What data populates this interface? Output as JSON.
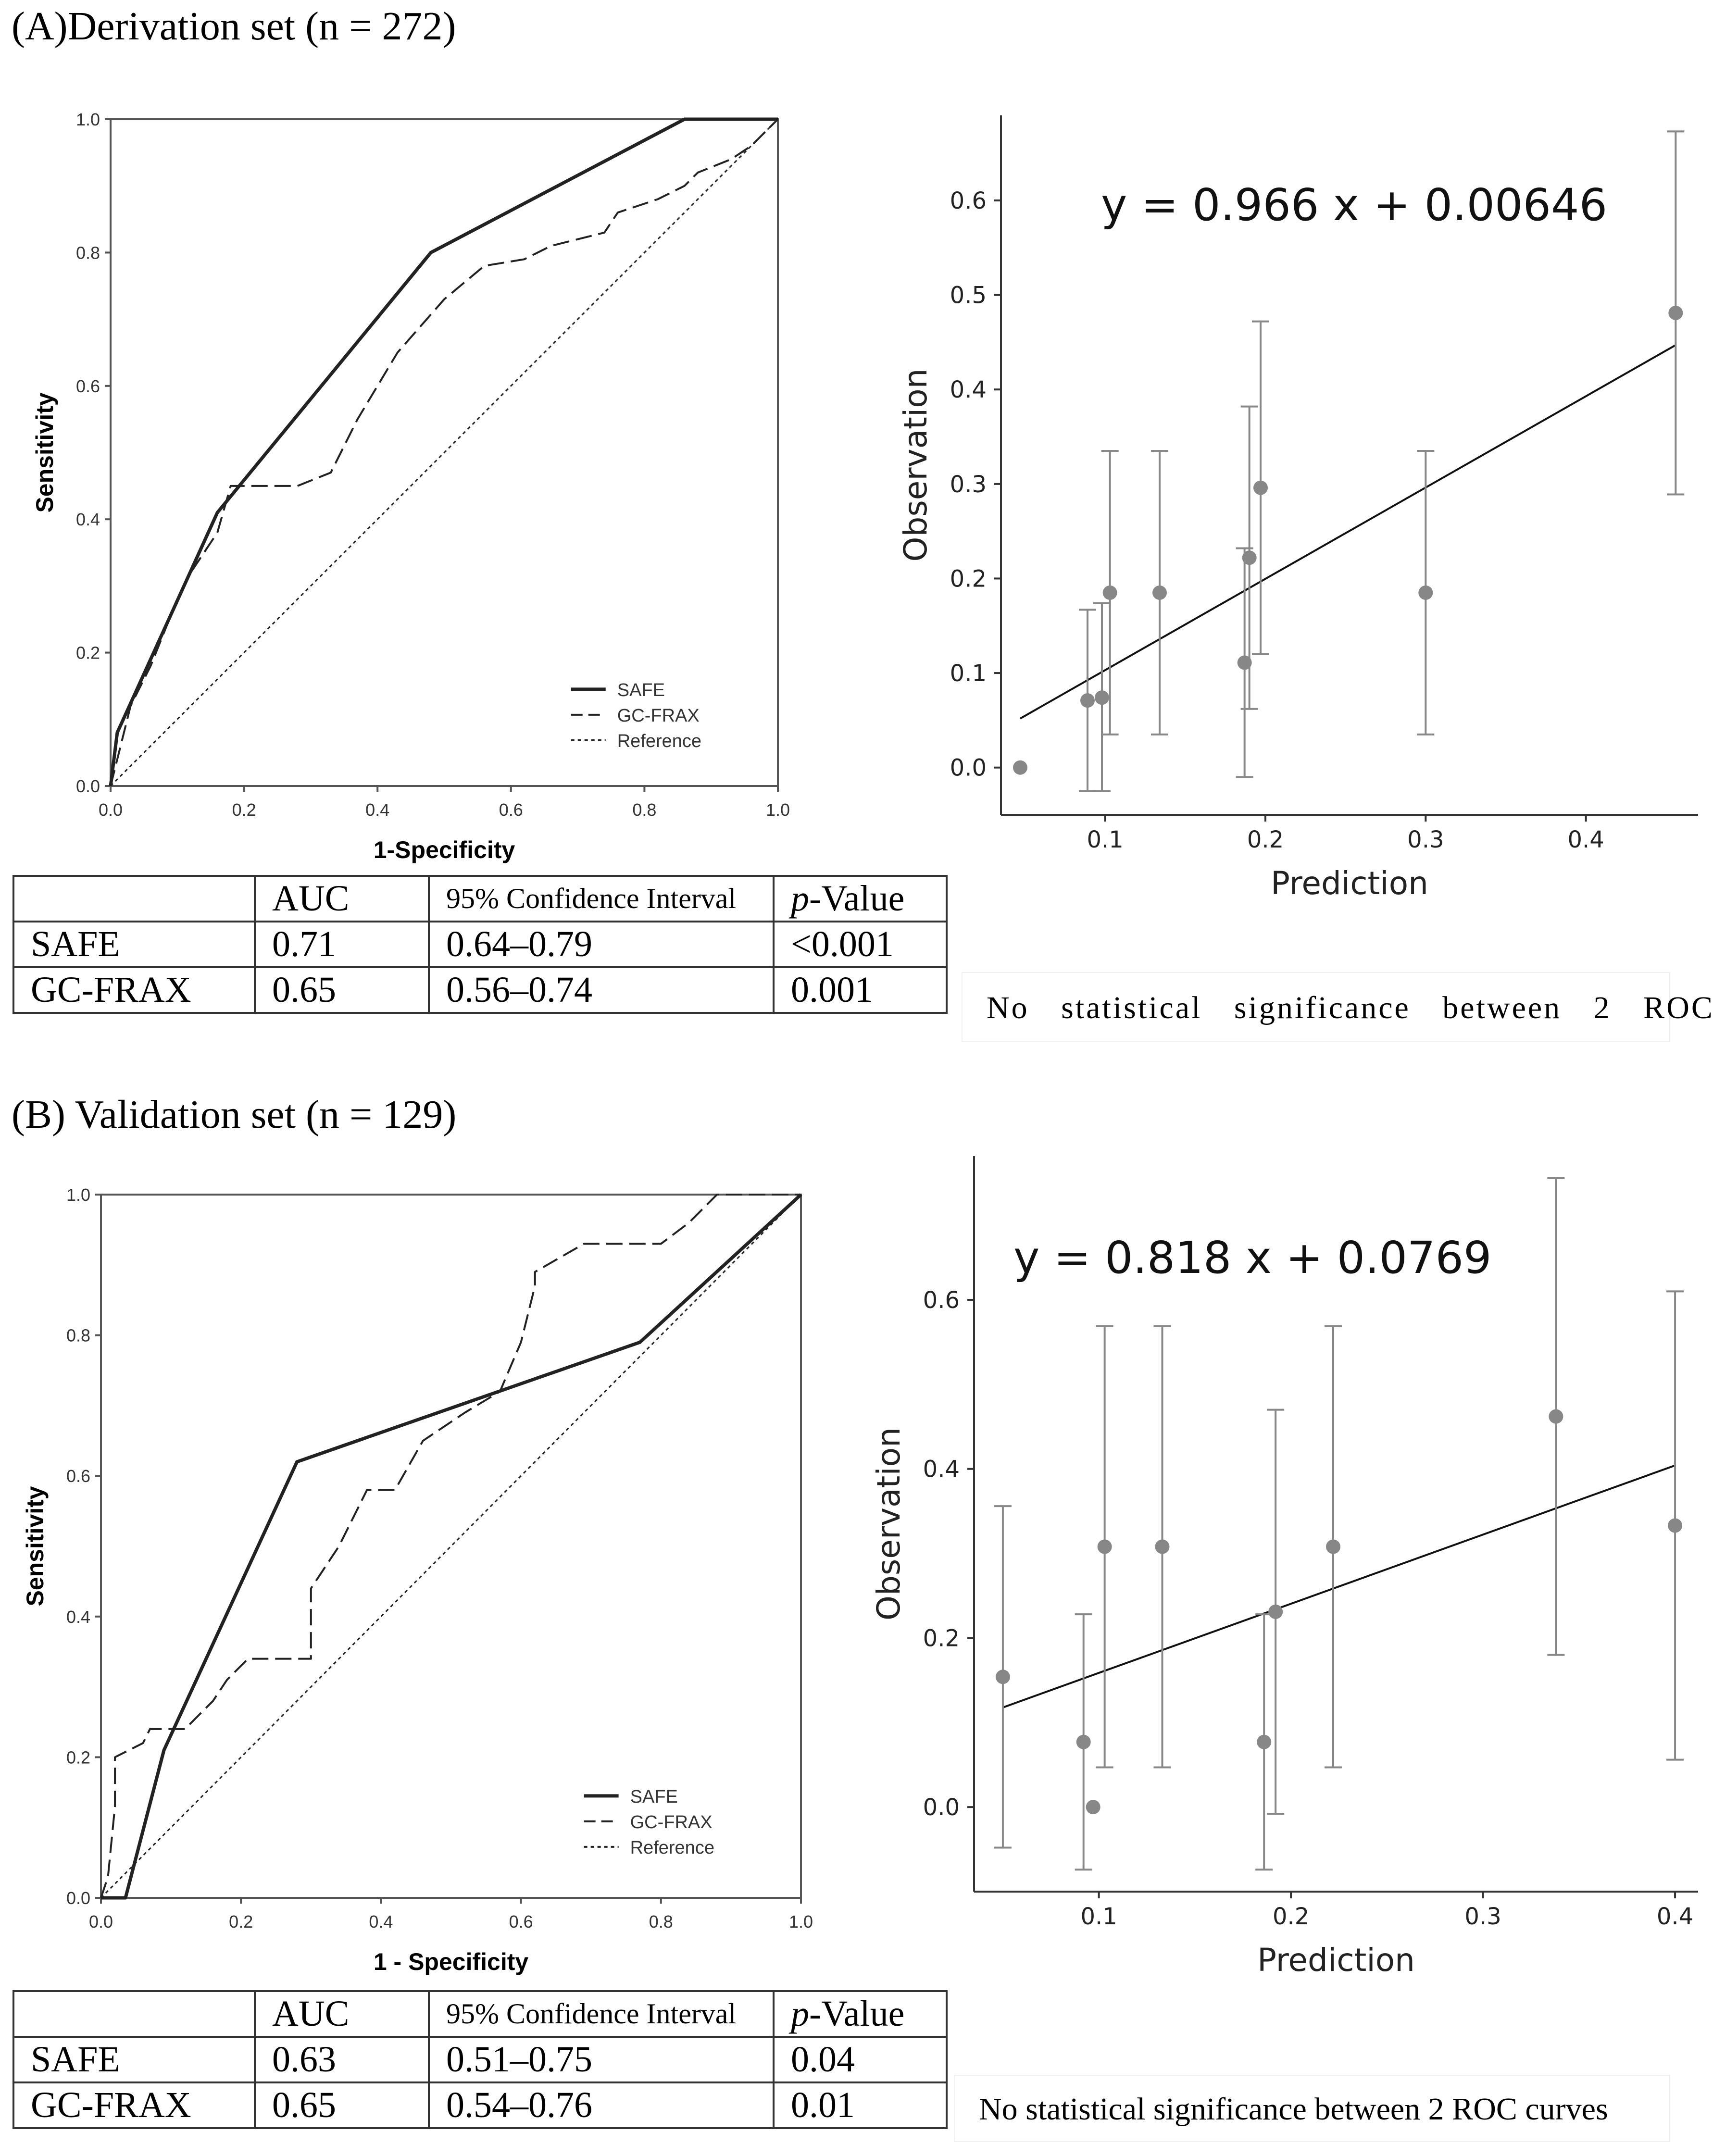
{
  "panels": [
    {
      "title": "(A)Derivation set (n = 272)",
      "roc": {
        "type": "line",
        "xlabel": "1-Specificity",
        "ylabel": "Sensitivity",
        "xlim": [
          0,
          1
        ],
        "ylim": [
          0,
          1
        ],
        "xticks": [
          "0.0",
          "0.2",
          "0.4",
          "0.6",
          "0.8",
          "1.0"
        ],
        "yticks": [
          "0.0",
          "0.2",
          "0.4",
          "0.6",
          "0.8",
          "1.0"
        ],
        "legend_position": "bottom-right",
        "series": [
          {
            "name": "SAFE",
            "style": "solid",
            "x": [
              0,
              0.01,
              0.16,
              0.48,
              0.86,
              1.0
            ],
            "y": [
              0,
              0.08,
              0.41,
              0.8,
              1.0,
              1.0
            ]
          },
          {
            "name": "GC-FRAX",
            "style": "dashed",
            "x": [
              0,
              0.01,
              0.03,
              0.06,
              0.1,
              0.12,
              0.16,
              0.18,
              0.2,
              0.28,
              0.33,
              0.37,
              0.43,
              0.5,
              0.56,
              0.62,
              0.66,
              0.74,
              0.76,
              0.82,
              0.86,
              0.88,
              0.93,
              0.96,
              0.98,
              1.0
            ],
            "y": [
              0,
              0.04,
              0.12,
              0.18,
              0.28,
              0.32,
              0.38,
              0.45,
              0.45,
              0.45,
              0.47,
              0.55,
              0.65,
              0.73,
              0.78,
              0.79,
              0.81,
              0.83,
              0.86,
              0.88,
              0.9,
              0.92,
              0.94,
              0.96,
              0.98,
              1.0
            ]
          },
          {
            "name": "Reference",
            "style": "dotted",
            "x": [
              0,
              1
            ],
            "y": [
              0,
              1
            ]
          }
        ]
      },
      "calibration": {
        "type": "scatter",
        "equation": "y = 0.966 x + 0.00646",
        "xlabel": "Prediction",
        "ylabel": "Observation",
        "xlim": [
          0.035,
          0.47
        ],
        "ylim": [
          -0.05,
          0.69
        ],
        "xticks": [
          0.1,
          0.2,
          0.3,
          0.4
        ],
        "yticks": [
          0.0,
          0.1,
          0.2,
          0.3,
          0.4,
          0.5,
          0.6
        ],
        "points": [
          {
            "x": 0.047,
            "y": 0.0,
            "lo": null,
            "hi": null
          },
          {
            "x": 0.089,
            "y": 0.071,
            "lo": -0.025,
            "hi": 0.167
          },
          {
            "x": 0.098,
            "y": 0.074,
            "lo": -0.025,
            "hi": 0.174
          },
          {
            "x": 0.103,
            "y": 0.185,
            "lo": 0.035,
            "hi": 0.335
          },
          {
            "x": 0.134,
            "y": 0.185,
            "lo": 0.035,
            "hi": 0.335
          },
          {
            "x": 0.187,
            "y": 0.111,
            "lo": -0.01,
            "hi": 0.232
          },
          {
            "x": 0.19,
            "y": 0.222,
            "lo": 0.062,
            "hi": 0.382
          },
          {
            "x": 0.197,
            "y": 0.296,
            "lo": 0.12,
            "hi": 0.472
          },
          {
            "x": 0.3,
            "y": 0.185,
            "lo": 0.035,
            "hi": 0.335
          },
          {
            "x": 0.456,
            "y": 0.481,
            "lo": 0.289,
            "hi": 0.673
          }
        ],
        "fit": {
          "slope": 0.966,
          "intercept": 0.00646,
          "x0": 0.047,
          "x1": 0.456
        }
      },
      "table": {
        "headers": [
          "",
          "AUC",
          "95% Confidence Interval",
          "p-Value"
        ],
        "rows": [
          [
            "SAFE",
            "0.71",
            "0.64–0.79",
            "<0.001"
          ],
          [
            "GC-FRAX",
            "0.65",
            "0.56–0.74",
            "0.001"
          ]
        ]
      },
      "note": "No statistical significance between 2 ROC"
    },
    {
      "title": "(B) Validation set (n = 129)",
      "roc": {
        "type": "line",
        "xlabel": "1 - Specificity",
        "ylabel": "Sensitivity",
        "xlim": [
          0,
          1
        ],
        "ylim": [
          0,
          1
        ],
        "xticks": [
          "0.0",
          "0.2",
          "0.4",
          "0.6",
          "0.8",
          "1.0"
        ],
        "yticks": [
          "0.0",
          "0.2",
          "0.4",
          "0.6",
          "0.8",
          "1.0"
        ],
        "legend_position": "bottom-right",
        "series": [
          {
            "name": "SAFE",
            "style": "solid",
            "x": [
              0,
              0.035,
              0.09,
              0.28,
              0.77,
              1.0
            ],
            "y": [
              0,
              0.0,
              0.21,
              0.62,
              0.79,
              1.0
            ]
          },
          {
            "name": "GC-FRAX",
            "style": "dashed",
            "x": [
              0,
              0.01,
              0.02,
              0.02,
              0.06,
              0.07,
              0.12,
              0.14,
              0.16,
              0.18,
              0.21,
              0.26,
              0.3,
              0.3,
              0.34,
              0.38,
              0.42,
              0.46,
              0.52,
              0.57,
              0.6,
              0.62,
              0.62,
              0.69,
              0.72,
              0.8,
              0.84,
              0.84,
              0.88,
              0.97,
              1.0
            ],
            "y": [
              0,
              0.03,
              0.13,
              0.2,
              0.22,
              0.24,
              0.24,
              0.26,
              0.28,
              0.31,
              0.34,
              0.34,
              0.34,
              0.44,
              0.5,
              0.58,
              0.58,
              0.65,
              0.69,
              0.72,
              0.79,
              0.87,
              0.89,
              0.93,
              0.93,
              0.93,
              0.96,
              0.96,
              1.0,
              1.0,
              1.0
            ]
          },
          {
            "name": "Reference",
            "style": "dotted",
            "x": [
              0,
              1
            ],
            "y": [
              0,
              1
            ]
          }
        ]
      },
      "calibration": {
        "type": "scatter",
        "equation": "y = 0.818 x + 0.0769",
        "xlabel": "Prediction",
        "ylabel": "Observation",
        "xlim": [
          0.035,
          0.412
        ],
        "ylim": [
          -0.1,
          0.77
        ],
        "xticks": [
          0.1,
          0.2,
          0.3,
          0.4
        ],
        "yticks": [
          0.0,
          0.2,
          0.4,
          0.6
        ],
        "points": [
          {
            "x": 0.05,
            "y": 0.154,
            "lo": -0.048,
            "hi": 0.356
          },
          {
            "x": 0.092,
            "y": 0.077,
            "lo": -0.074,
            "hi": 0.228
          },
          {
            "x": 0.097,
            "y": 0.0,
            "lo": null,
            "hi": null
          },
          {
            "x": 0.103,
            "y": 0.308,
            "lo": 0.047,
            "hi": 0.569
          },
          {
            "x": 0.133,
            "y": 0.308,
            "lo": 0.047,
            "hi": 0.569
          },
          {
            "x": 0.186,
            "y": 0.077,
            "lo": -0.074,
            "hi": 0.228
          },
          {
            "x": 0.192,
            "y": 0.231,
            "lo": -0.008,
            "hi": 0.47
          },
          {
            "x": 0.222,
            "y": 0.308,
            "lo": 0.047,
            "hi": 0.569
          },
          {
            "x": 0.338,
            "y": 0.462,
            "lo": 0.18,
            "hi": 0.744
          },
          {
            "x": 0.4,
            "y": 0.333,
            "lo": 0.056,
            "hi": 0.61
          }
        ],
        "fit": {
          "slope": 0.818,
          "intercept": 0.0769,
          "x0": 0.05,
          "x1": 0.4
        }
      },
      "table": {
        "headers": [
          "",
          "AUC",
          "95% Confidence Interval",
          "p-Value"
        ],
        "rows": [
          [
            "SAFE",
            "0.63",
            "0.51–0.75",
            "0.04"
          ],
          [
            "GC-FRAX",
            "0.65",
            "0.54–0.76",
            "0.01"
          ]
        ]
      },
      "note": "No statistical significance between 2 ROC curves"
    }
  ]
}
